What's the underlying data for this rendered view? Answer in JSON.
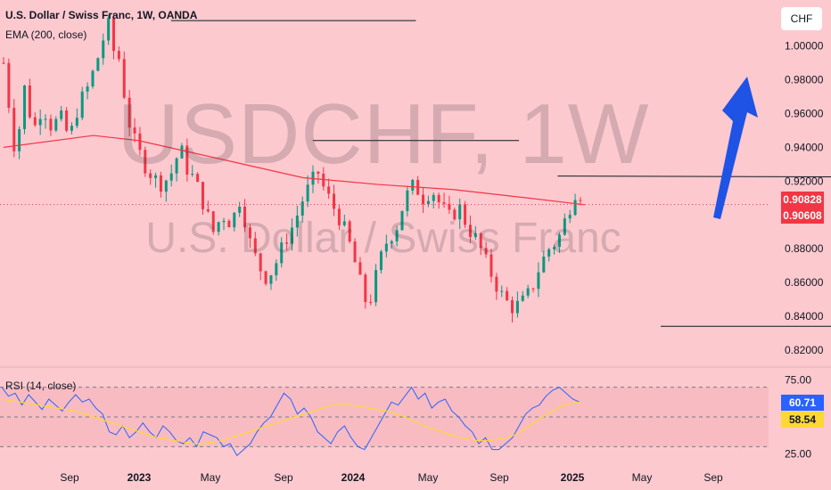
{
  "header": {
    "symbol_title": "U.S. Dollar / Swiss Franc, 1W, OANDA",
    "indicator": "EMA (200, close)",
    "rsi_label": "RSI (14, close)",
    "currency": "CHF"
  },
  "watermark": {
    "line1": "USDCHF, 1W",
    "line2": "U.S. Dollar / Swiss Franc"
  },
  "colors": {
    "background": "#fcc9cf",
    "up": "#089981",
    "down": "#f23645",
    "ema": "#f23645",
    "rsi": "#2962ff",
    "rsi_ma": "#fdd835",
    "arrow": "#1e53e5"
  },
  "price_tags": [
    {
      "value": "0.90828",
      "color": "#f23645"
    },
    {
      "value": "0.90608",
      "color": "#f23645"
    }
  ],
  "rsi_tags": [
    {
      "value": "60.71",
      "color": "#2962ff",
      "text": "#ffffff"
    },
    {
      "value": "58.54",
      "color": "#fdd835",
      "text": "#131722"
    }
  ],
  "chart_data": {
    "type": "candlestick",
    "y_axis": {
      "ticks": [
        1.0,
        0.98,
        0.96,
        0.94,
        0.92,
        0.9,
        0.88,
        0.86,
        0.84,
        0.82
      ],
      "labels": [
        "1.00000",
        "0.98000",
        "0.96000",
        "0.94000",
        "0.92000",
        "0.90000",
        "0.88000",
        "0.86000",
        "0.84000",
        "0.82000"
      ],
      "range": [
        0.812,
        1.023
      ]
    },
    "x_axis": {
      "labels": [
        "Sep",
        "2023",
        "May",
        "Sep",
        "2024",
        "May",
        "Sep",
        "2025",
        "May",
        "Sep"
      ],
      "bold": [
        "2023",
        "2024",
        "2025"
      ]
    },
    "close_path": [
      [
        0,
        0.99
      ],
      [
        8,
        0.935
      ],
      [
        14,
        0.975
      ],
      [
        20,
        0.95
      ],
      [
        26,
        0.965
      ],
      [
        32,
        0.952
      ],
      [
        38,
        0.958
      ],
      [
        44,
        0.945
      ],
      [
        50,
        0.965
      ],
      [
        56,
        0.975
      ],
      [
        62,
        0.99
      ],
      [
        66,
        1.003
      ],
      [
        70,
        1.012
      ],
      [
        74,
        0.995
      ],
      [
        78,
        0.992
      ],
      [
        82,
        0.96
      ],
      [
        88,
        0.942
      ],
      [
        94,
        0.93
      ],
      [
        100,
        0.922
      ],
      [
        106,
        0.918
      ],
      [
        112,
        0.925
      ],
      [
        118,
        0.94
      ],
      [
        122,
        0.928
      ],
      [
        128,
        0.92
      ],
      [
        134,
        0.905
      ],
      [
        140,
        0.89
      ],
      [
        146,
        0.9
      ],
      [
        152,
        0.895
      ],
      [
        158,
        0.91
      ],
      [
        164,
        0.885
      ],
      [
        170,
        0.87
      ],
      [
        176,
        0.862
      ],
      [
        182,
        0.872
      ],
      [
        188,
        0.885
      ],
      [
        194,
        0.895
      ],
      [
        200,
        0.91
      ],
      [
        206,
        0.92
      ],
      [
        210,
        0.925
      ],
      [
        214,
        0.915
      ],
      [
        220,
        0.905
      ],
      [
        226,
        0.895
      ],
      [
        232,
        0.88
      ],
      [
        238,
        0.86
      ],
      [
        242,
        0.848
      ],
      [
        246,
        0.852
      ],
      [
        250,
        0.87
      ],
      [
        256,
        0.885
      ],
      [
        262,
        0.892
      ],
      [
        268,
        0.91
      ],
      [
        274,
        0.918
      ],
      [
        280,
        0.91
      ],
      [
        286,
        0.915
      ],
      [
        292,
        0.905
      ],
      [
        298,
        0.898
      ],
      [
        304,
        0.905
      ],
      [
        310,
        0.892
      ],
      [
        316,
        0.885
      ],
      [
        322,
        0.872
      ],
      [
        328,
        0.86
      ],
      [
        334,
        0.85
      ],
      [
        340,
        0.845
      ],
      [
        346,
        0.848
      ],
      [
        352,
        0.855
      ],
      [
        358,
        0.87
      ],
      [
        364,
        0.88
      ],
      [
        370,
        0.885
      ],
      [
        376,
        0.9
      ],
      [
        382,
        0.915
      ],
      [
        384,
        0.915
      ],
      [
        388,
        0.905
      ]
    ],
    "ema_path": [
      [
        0,
        0.94
      ],
      [
        60,
        0.947
      ],
      [
        90,
        0.944
      ],
      [
        150,
        0.932
      ],
      [
        200,
        0.922
      ],
      [
        250,
        0.918
      ],
      [
        300,
        0.915
      ],
      [
        350,
        0.91
      ],
      [
        388,
        0.906
      ]
    ],
    "drawn_lines": [
      {
        "from": [
          26,
          1.015
        ],
        "to": [
          64,
          1.015
        ]
      },
      {
        "from": [
          48,
          0.944
        ],
        "to": [
          80,
          0.944
        ]
      },
      {
        "from": [
          86,
          0.923
        ],
        "to": [
          173,
          0.922
        ]
      },
      {
        "from": [
          102,
          0.834
        ],
        "to": [
          215,
          0.834
        ]
      },
      {
        "from": [
          172,
          0.922
        ],
        "to": [
          174,
          0.912
        ]
      }
    ],
    "projection_path": [
      [
        172,
        0.92
      ],
      [
        176,
        0.897
      ],
      [
        180,
        0.908
      ],
      [
        182,
        0.9
      ],
      [
        194,
        0.99
      ]
    ],
    "rsi": {
      "range": [
        20,
        80
      ],
      "ticks": [
        75,
        25
      ],
      "labels": [
        "75.00",
        "25.00"
      ],
      "band": [
        70,
        30
      ],
      "mid": 50,
      "values": [
        70,
        64,
        66,
        58,
        65,
        60,
        55,
        62,
        58,
        54,
        60,
        65,
        60,
        62,
        56,
        52,
        40,
        38,
        44,
        36,
        40,
        46,
        40,
        36,
        44,
        40,
        34,
        32,
        36,
        30,
        40,
        38,
        36,
        30,
        32,
        24,
        28,
        32,
        40,
        46,
        50,
        58,
        66,
        62,
        52,
        56,
        50,
        40,
        36,
        32,
        40,
        44,
        36,
        30,
        28,
        36,
        44,
        52,
        60,
        58,
        64,
        70,
        62,
        66,
        56,
        60,
        62,
        54,
        50,
        44,
        40,
        32,
        36,
        28,
        28,
        32,
        36,
        44,
        52,
        56,
        58,
        64,
        68,
        70,
        66,
        62,
        60
      ],
      "ma_values": [
        62,
        61,
        60,
        59,
        58,
        57,
        56,
        55,
        54,
        52,
        50,
        48,
        46,
        44,
        42,
        40,
        38,
        36,
        35,
        34,
        33,
        32,
        32,
        33,
        34,
        36,
        38,
        40,
        42,
        44,
        46,
        48,
        50,
        52,
        54,
        56,
        58,
        58,
        58,
        57,
        56,
        55,
        54,
        52,
        50,
        47,
        44,
        42,
        40,
        38,
        36,
        35,
        34,
        34,
        35,
        36,
        38,
        42,
        46,
        50,
        54,
        57,
        59,
        60
      ]
    }
  }
}
